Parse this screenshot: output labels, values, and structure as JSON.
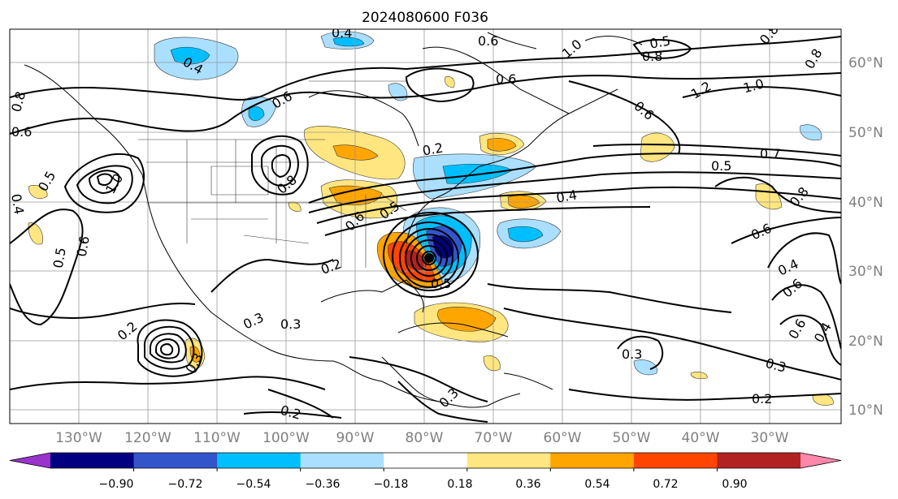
{
  "title": "2024080600 F036",
  "longitude_labels": [
    "130°W",
    "120°W",
    "110°W",
    "100°W",
    "90°W",
    "80°W",
    "70°W",
    "60°W",
    "50°W",
    "40°W",
    "30°W"
  ],
  "latitude_labels": [
    "60°N",
    "50°N",
    "40°N",
    "30°N",
    "20°N",
    "10°N"
  ],
  "colorbar": {
    "tick_labels": [
      "−0.90",
      "−0.72",
      "−0.54",
      "−0.36",
      "−0.18",
      "0.18",
      "0.36",
      "0.54",
      "0.72",
      "0.90"
    ],
    "colors": [
      "#9933cc",
      "#000080",
      "#3355cc",
      "#00bfff",
      "#aadfff",
      "#ffffff",
      "#ffe680",
      "#ffa500",
      "#ff4500",
      "#b22222",
      "#ff88aa"
    ]
  },
  "fill_colors": {
    "light_blue": "#aadfff",
    "blue": "#00bfff",
    "mid_blue": "#3355cc",
    "navy": "#000080",
    "light_yellow": "#ffe680",
    "orange": "#ffa500",
    "red_orange": "#ff4500",
    "dark_red": "#b22222"
  },
  "contour_labels": [
    {
      "text": "0.8"
    },
    {
      "text": "0.6"
    },
    {
      "text": "0.5"
    },
    {
      "text": "0.4"
    },
    {
      "text": "1.0"
    },
    {
      "text": "0.8"
    },
    {
      "text": "0.5"
    },
    {
      "text": "0.6"
    },
    {
      "text": "0.6"
    },
    {
      "text": "1.0"
    },
    {
      "text": "0.8"
    },
    {
      "text": "0.4"
    },
    {
      "text": "0.6"
    },
    {
      "text": "0.6"
    },
    {
      "text": "0.5"
    },
    {
      "text": "0.8"
    },
    {
      "text": "0.6"
    },
    {
      "text": "1.0"
    },
    {
      "text": "1.2"
    },
    {
      "text": "0.8"
    },
    {
      "text": "0.7"
    },
    {
      "text": "0.5"
    },
    {
      "text": "0.4"
    },
    {
      "text": "0.8"
    },
    {
      "text": "0.6"
    },
    {
      "text": "0.4"
    },
    {
      "text": "0.6"
    },
    {
      "text": "0.3"
    },
    {
      "text": "0.2"
    },
    {
      "text": "0.3"
    },
    {
      "text": "0.3"
    },
    {
      "text": "0.2"
    },
    {
      "text": "0.2"
    },
    {
      "text": "0.3"
    },
    {
      "text": "0.2"
    },
    {
      "text": "0.5"
    },
    {
      "text": "0.6"
    },
    {
      "text": "0.5"
    },
    {
      "text": "0.3"
    },
    {
      "text": "0.2"
    },
    {
      "text": "0.4"
    },
    {
      "text": "0.4"
    },
    {
      "text": "0.3"
    },
    {
      "text": "0.6"
    }
  ]
}
